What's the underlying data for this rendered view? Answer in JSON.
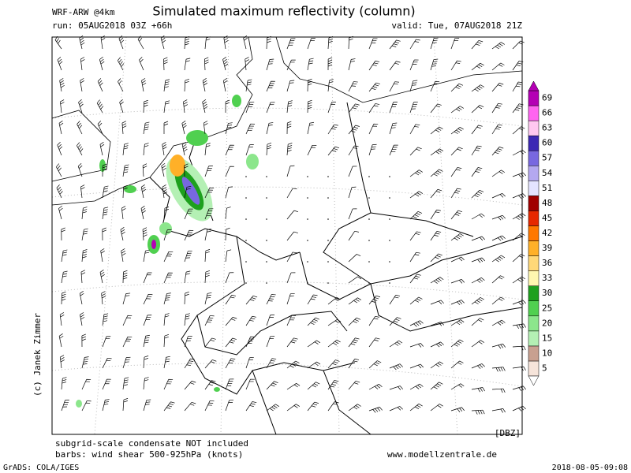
{
  "header": {
    "model": "WRF-ARW @4km",
    "title": "Simulated maximum reflectivity (column)",
    "run": "run: 05AUG2018 03Z +66h",
    "valid": "valid: Tue, 07AUG2018 21Z"
  },
  "credit": "(c) Janek Zimmer",
  "footer": {
    "note1": "subgrid-scale condensate NOT included",
    "note2": "barbs: wind shear 500-925hPa (knots)",
    "site": "www.modellzentrale.de",
    "grads": "GrADS: COLA/IGES",
    "timestamp": "2018-08-05-09:08"
  },
  "colorbar": {
    "unit": "[DBZ]",
    "levels": [
      5,
      10,
      15,
      20,
      25,
      30,
      33,
      36,
      39,
      42,
      45,
      48,
      51,
      54,
      57,
      60,
      63,
      66,
      69
    ],
    "colors": [
      "#f6e4da",
      "#c8a090",
      "#b4f0b4",
      "#8ce68c",
      "#50d050",
      "#1ea01e",
      "#fff7b0",
      "#ffd878",
      "#ffb028",
      "#ff7800",
      "#e62800",
      "#a00000",
      "#e4e4ff",
      "#b4a8f0",
      "#7868e0",
      "#3c28b4",
      "#ffc8f0",
      "#ff64f0",
      "#b400b4"
    ]
  }
}
